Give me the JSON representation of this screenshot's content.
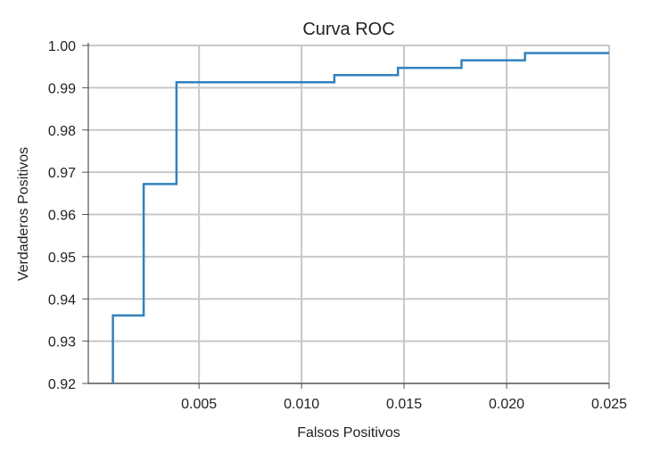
{
  "chart_data": {
    "type": "line",
    "step": true,
    "title": "Curva ROC",
    "xlabel": "Falsos Positivos",
    "ylabel": "Verdaderos Positivos",
    "xlim": [
      -0.0004,
      0.025
    ],
    "ylim": [
      0.92,
      1.0
    ],
    "x_ticks": [
      0.005,
      0.01,
      0.015,
      0.02,
      0.025
    ],
    "x_tick_labels": [
      "0.005",
      "0.010",
      "0.015",
      "0.020",
      "0.025"
    ],
    "y_ticks": [
      0.92,
      0.93,
      0.94,
      0.95,
      0.96,
      0.97,
      0.98,
      0.99,
      1.0
    ],
    "y_tick_labels": [
      "0.92",
      "0.93",
      "0.94",
      "0.95",
      "0.96",
      "0.97",
      "0.98",
      "0.99",
      "1.00"
    ],
    "grid": true,
    "series": [
      {
        "color": "#3182bd",
        "x": [
          0.0008,
          0.0008,
          0.0023,
          0.0023,
          0.0039,
          0.0039,
          0.0116,
          0.0116,
          0.0147,
          0.0147,
          0.0178,
          0.0178,
          0.0209,
          0.0209,
          0.025
        ],
        "y": [
          0.92,
          0.9361,
          0.9361,
          0.9672,
          0.9672,
          0.9913,
          0.9913,
          0.993,
          0.993,
          0.9947,
          0.9947,
          0.9965,
          0.9965,
          0.9982,
          0.9982
        ]
      }
    ]
  }
}
